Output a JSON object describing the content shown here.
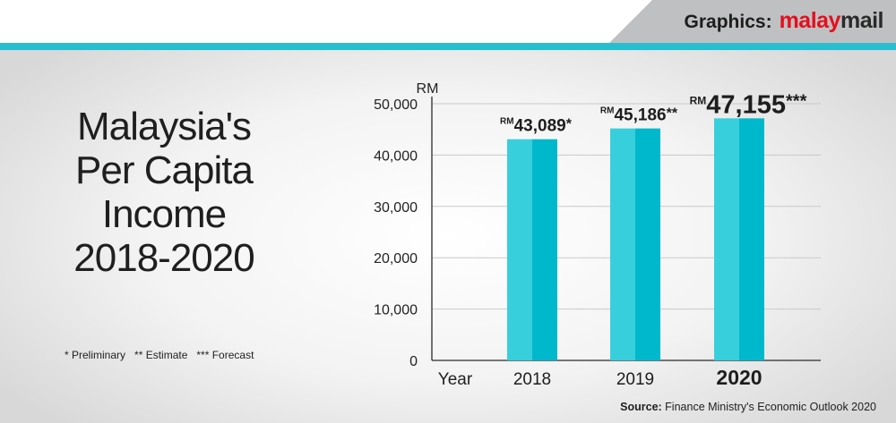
{
  "brand": {
    "prefix": "Graphics:",
    "logo_part1": "malay",
    "logo_part2": "mail"
  },
  "title_lines": [
    "Malaysia's",
    "Per Capita",
    "Income",
    "2018-2020"
  ],
  "footnotes": "* Preliminary   ** Estimate   *** Forecast",
  "source": {
    "label": "Source:",
    "text": "Finance Ministry's Economic Outlook 2020"
  },
  "colors": {
    "accent": "#27bfcf",
    "bar_light": "#38cfdc",
    "bar_dark": "#00b8cc",
    "brand_red": "#e3101e"
  },
  "chart_data": {
    "type": "bar",
    "title": "Malaysia's Per Capita Income 2018-2020",
    "ylabel": "RM",
    "xlabel": "Year",
    "categories": [
      "2018",
      "2019",
      "2020"
    ],
    "values": [
      43089,
      45186,
      47155
    ],
    "data_labels": [
      {
        "prefix": "RM",
        "value": "43,089",
        "suffix": "*"
      },
      {
        "prefix": "RM",
        "value": "45,186",
        "suffix": "**"
      },
      {
        "prefix": "RM",
        "value": "47,155",
        "suffix": "***"
      }
    ],
    "ylim": [
      0,
      50000
    ],
    "yticks": [
      0,
      10000,
      20000,
      30000,
      40000,
      50000
    ],
    "ytick_labels": [
      "0",
      "10,000",
      "20,000",
      "30,000",
      "40,000",
      "50,000"
    ],
    "grid": true,
    "highlight_category": "2020"
  }
}
